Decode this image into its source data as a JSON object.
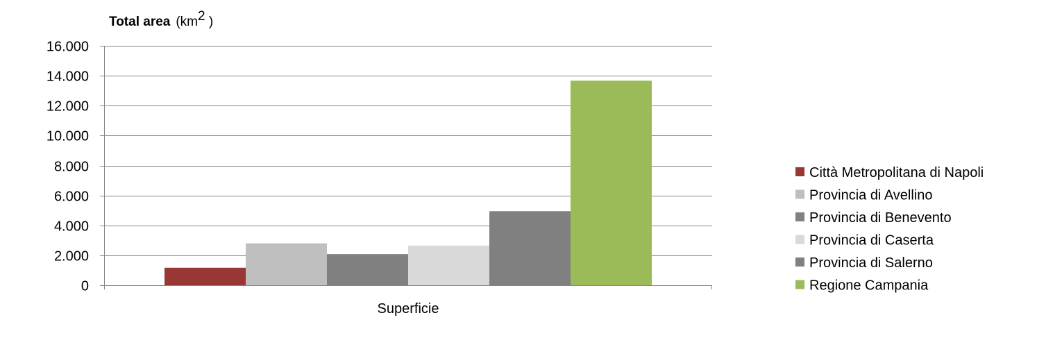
{
  "chart_data": {
    "type": "bar",
    "title": "Total area",
    "unit_prefix": "(km",
    "unit_superscript": "2",
    "unit_suffix": " )",
    "categories": [
      "Superficie"
    ],
    "series": [
      {
        "name": "Città Metropolitana di Napoli",
        "values": [
          1170
        ],
        "color": "#993735"
      },
      {
        "name": "Provincia di Avellino",
        "values": [
          2800
        ],
        "color": "#bfbfbf"
      },
      {
        "name": "Provincia di Benevento",
        "values": [
          2080
        ],
        "color": "#808080"
      },
      {
        "name": "Provincia di Caserta",
        "values": [
          2650
        ],
        "color": "#d9d9d9"
      },
      {
        "name": "Provincia di Salerno",
        "values": [
          4950
        ],
        "color": "#808080"
      },
      {
        "name": "Regione Campania",
        "values": [
          13670
        ],
        "color": "#9bbb59"
      }
    ],
    "ylim": [
      0,
      16000
    ],
    "yticks": [
      0,
      2000,
      4000,
      6000,
      8000,
      10000,
      12000,
      14000,
      16000
    ],
    "ytick_labels": [
      "0",
      "2.000",
      "4.000",
      "6.000",
      "8.000",
      "10.000",
      "12.000",
      "14.000",
      "16.000"
    ],
    "grid": true,
    "legend_position": "right"
  }
}
